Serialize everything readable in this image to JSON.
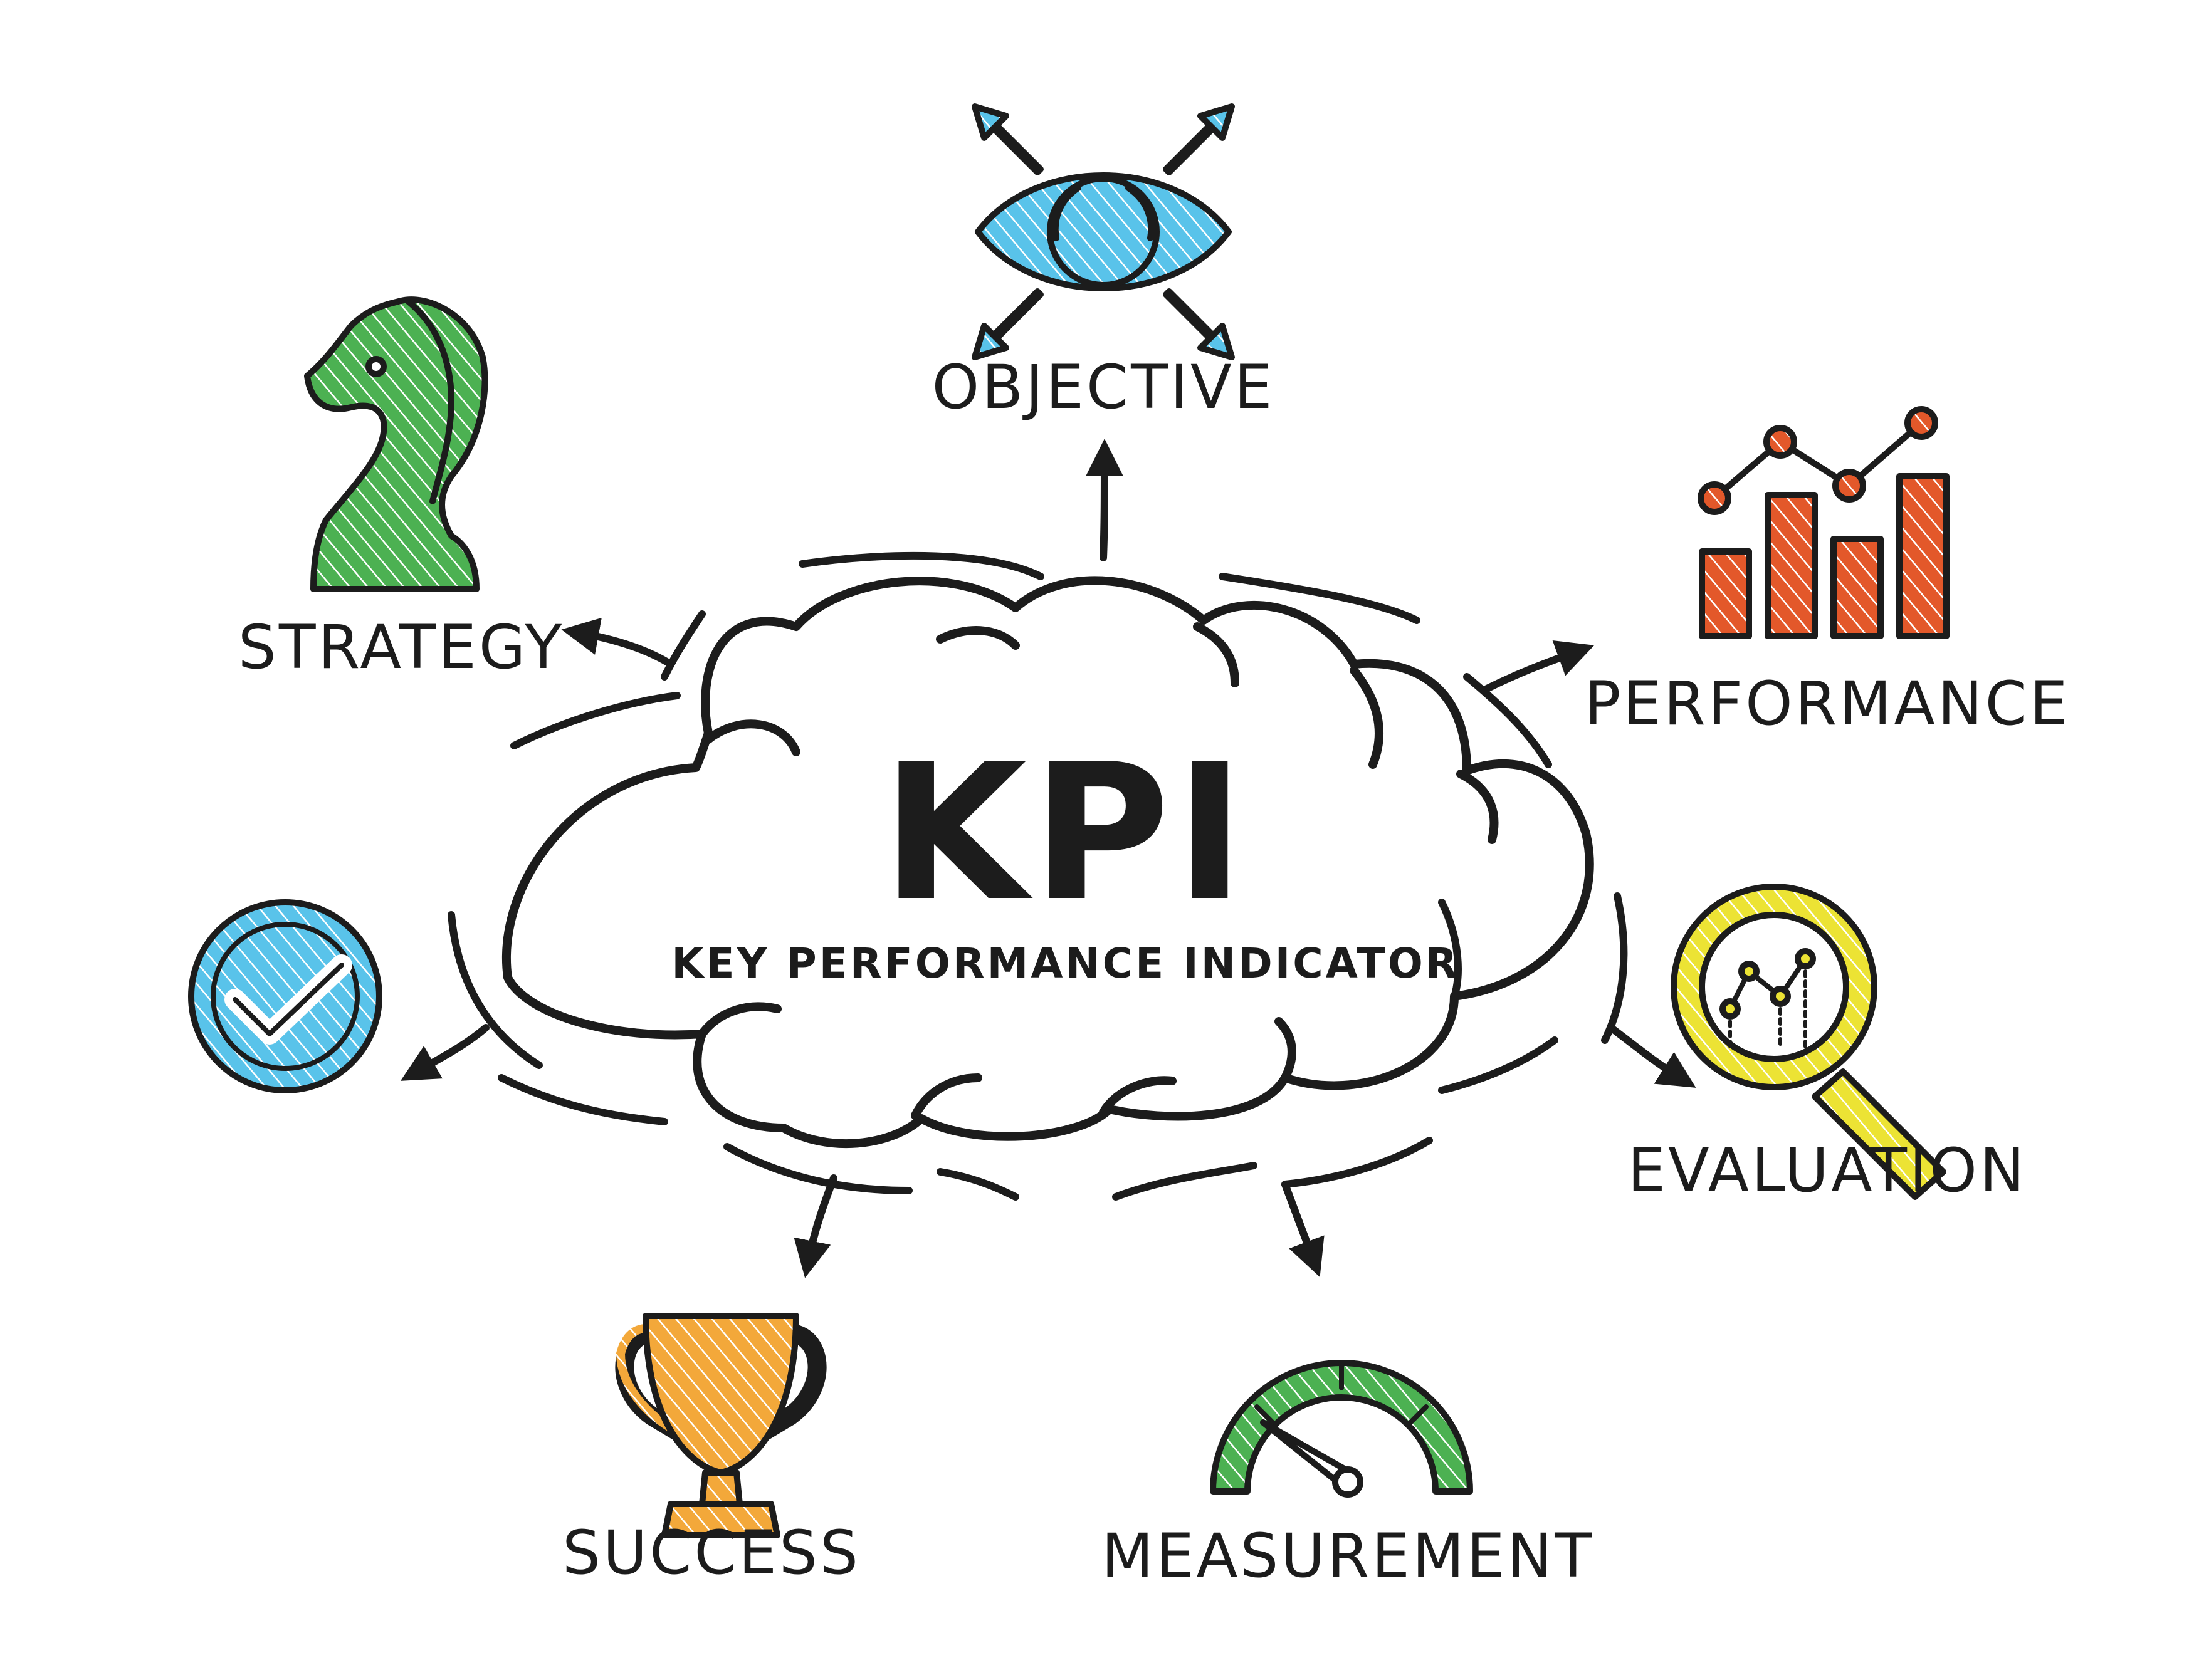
{
  "center": {
    "title": "KPI",
    "subtitle": "KEY PERFORMANCE INDICATOR"
  },
  "nodes": [
    {
      "id": "objective",
      "label": "OBJECTIVE",
      "icon": "eye-arrows-icon",
      "color": "#3bb4e0"
    },
    {
      "id": "strategy",
      "label": "STRATEGY",
      "icon": "chess-knight-icon",
      "color": "#3fa84a"
    },
    {
      "id": "performance",
      "label": "PERFORMANCE",
      "icon": "bar-chart-icon",
      "color": "#e05a2b"
    },
    {
      "id": "check",
      "label": "",
      "icon": "checkmark-badge-icon",
      "color": "#3bb4e0"
    },
    {
      "id": "evaluation",
      "label": "EVALUATION",
      "icon": "magnifier-chart-icon",
      "color": "#e8df2a"
    },
    {
      "id": "success",
      "label": "SUCCESS",
      "icon": "trophy-icon",
      "color": "#f0a531"
    },
    {
      "id": "measurement",
      "label": "MEASUREMENT",
      "icon": "gauge-icon",
      "color": "#3fa84a"
    }
  ],
  "ink_color": "#1c1c1c"
}
